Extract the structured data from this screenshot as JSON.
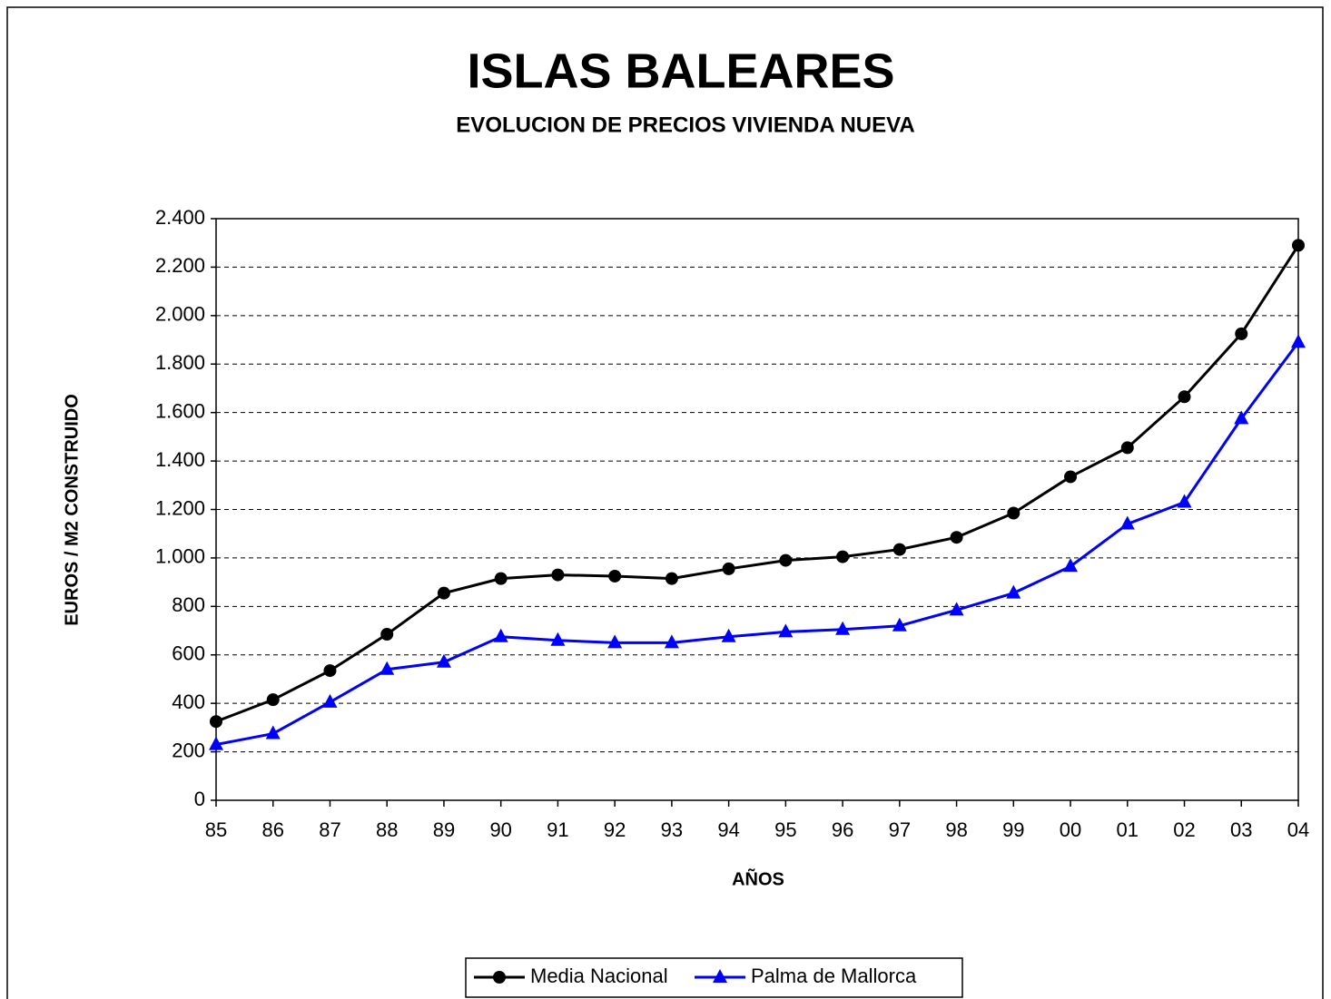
{
  "chart_data": {
    "type": "line",
    "title": "ISLAS BALEARES",
    "subtitle": "EVOLUCION DE PRECIOS VIVIENDA NUEVA",
    "x_label": "AÑOS",
    "y_label": "EUROS / M2 CONSTRUIDO",
    "categories": [
      "85",
      "86",
      "87",
      "88",
      "89",
      "90",
      "91",
      "92",
      "93",
      "94",
      "95",
      "96",
      "97",
      "98",
      "99",
      "00",
      "01",
      "02",
      "03",
      "04"
    ],
    "series": [
      {
        "name": "Media Nacional",
        "color": "#000000",
        "marker": "circle",
        "values": [
          325,
          415,
          535,
          685,
          855,
          915,
          930,
          925,
          915,
          955,
          990,
          1005,
          1035,
          1085,
          1185,
          1335,
          1455,
          1665,
          1925,
          2290
        ]
      },
      {
        "name": "Palma de Mallorca",
        "color": "#0000ff",
        "marker": "triangle",
        "values": [
          230,
          275,
          405,
          540,
          570,
          675,
          660,
          650,
          650,
          675,
          695,
          705,
          720,
          785,
          855,
          965,
          1140,
          1230,
          1575,
          1890
        ]
      }
    ],
    "ylim": [
      0,
      2400
    ],
    "yticks": [
      0,
      200,
      400,
      600,
      800,
      {
        "value": 1000,
        "label": "1.000"
      },
      {
        "value": 1200,
        "label": "1.200"
      },
      {
        "value": 1400,
        "label": "1.400"
      },
      {
        "value": 1600,
        "label": "1.600"
      },
      {
        "value": 1800,
        "label": "1.800"
      },
      {
        "value": 2000,
        "label": "2.000"
      },
      {
        "value": 2200,
        "label": "2.200"
      },
      {
        "value": 2400,
        "label": "2.400"
      }
    ],
    "grid": true,
    "legend": "bottom"
  }
}
